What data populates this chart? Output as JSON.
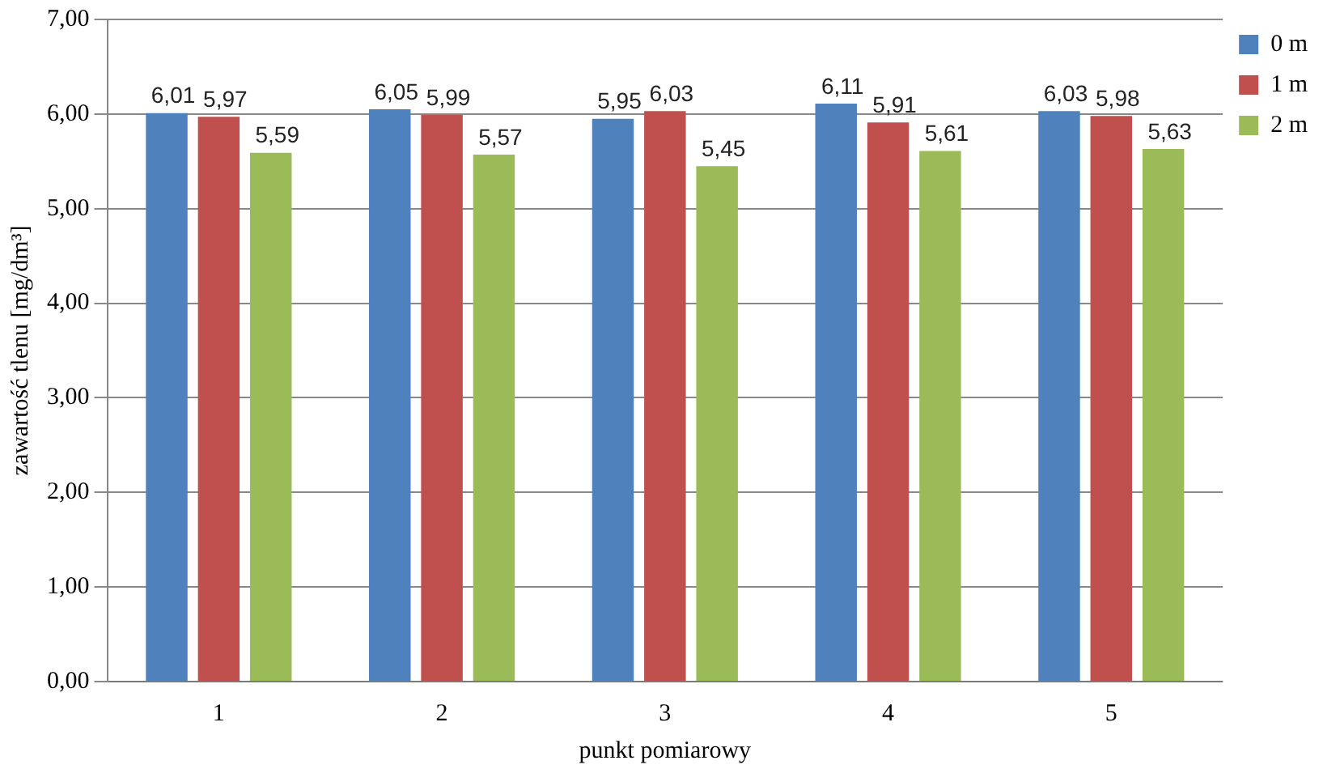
{
  "chart_data": {
    "type": "bar",
    "xlabel": "punkt pomiarowy",
    "ylabel": "zawartość tlenu [mg/dm³]",
    "categories": [
      "1",
      "2",
      "3",
      "4",
      "5"
    ],
    "series": [
      {
        "name": "0 m",
        "color": "#4f81bd",
        "values": [
          6.01,
          6.05,
          5.95,
          6.11,
          6.03
        ],
        "value_labels": [
          "6,01",
          "6,05",
          "5,95",
          "6,11",
          "6,03"
        ]
      },
      {
        "name": "1 m",
        "color": "#c0504d",
        "values": [
          5.97,
          5.99,
          6.03,
          5.91,
          5.98
        ],
        "value_labels": [
          "5,97",
          "5,99",
          "6,03",
          "5,91",
          "5,98"
        ]
      },
      {
        "name": "2 m",
        "color": "#9bbb59",
        "values": [
          5.59,
          5.57,
          5.45,
          5.61,
          5.63
        ],
        "value_labels": [
          "5,59",
          "5,57",
          "5,45",
          "5,61",
          "5,63"
        ]
      }
    ],
    "ylim": [
      0,
      7
    ],
    "yticks": [
      {
        "value": 0,
        "label": "0,00"
      },
      {
        "value": 1,
        "label": "1,00"
      },
      {
        "value": 2,
        "label": "2,00"
      },
      {
        "value": 3,
        "label": "3,00"
      },
      {
        "value": 4,
        "label": "4,00"
      },
      {
        "value": 5,
        "label": "5,00"
      },
      {
        "value": 6,
        "label": "6,00"
      },
      {
        "value": 7,
        "label": "7,00"
      }
    ],
    "grid": "y",
    "legend": "top right"
  }
}
